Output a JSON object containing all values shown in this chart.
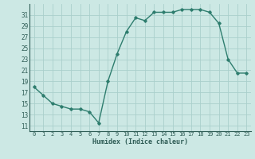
{
  "x": [
    0,
    1,
    2,
    3,
    4,
    5,
    6,
    7,
    8,
    9,
    10,
    11,
    12,
    13,
    14,
    15,
    16,
    17,
    18,
    19,
    20,
    21,
    22,
    23
  ],
  "y": [
    18,
    16.5,
    15,
    14.5,
    14,
    14,
    13.5,
    11.5,
    19,
    24,
    28,
    30.5,
    30,
    31.5,
    31.5,
    31.5,
    32,
    32,
    32,
    31.5,
    29.5,
    23,
    20.5,
    20.5
  ],
  "xlabel": "Humidex (Indice chaleur)",
  "xlim": [
    -0.5,
    23.5
  ],
  "ylim": [
    10,
    33
  ],
  "yticks": [
    11,
    13,
    15,
    17,
    19,
    21,
    23,
    25,
    27,
    29,
    31
  ],
  "xtick_labels": [
    "0",
    "1",
    "2",
    "3",
    "4",
    "5",
    "6",
    "7",
    "8",
    "9",
    "10",
    "11",
    "12",
    "13",
    "14",
    "15",
    "16",
    "17",
    "18",
    "19",
    "20",
    "21",
    "22",
    "23"
  ],
  "line_color": "#2e7d6e",
  "bg_color": "#cce8e4",
  "grid_color": "#aacfcc",
  "label_color": "#2e5c55",
  "marker": "D",
  "marker_size": 1.8,
  "line_width": 1.0
}
